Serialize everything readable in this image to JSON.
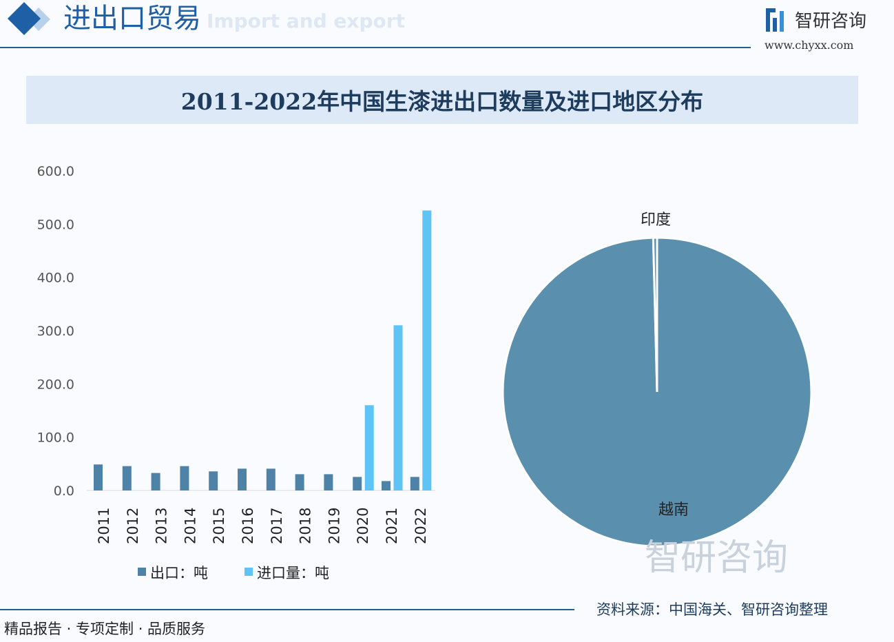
{
  "header": {
    "title": "进出口贸易",
    "subtitle": "Import and export",
    "brand": "智研咨询",
    "url": "www.chyxx.com"
  },
  "chart_title": "2011-2022年中国生漆进出口数量及进口地区分布",
  "footer": {
    "left": "精品报告 · 专项定制 · 品质服务",
    "source": "资料来源：中国海关、智研咨询整理",
    "watermark": "智研咨询"
  },
  "colors": {
    "export": "#4e82a6",
    "import": "#5ec4f5",
    "pie": "#5a8fad",
    "accent": "#1f5fa6"
  },
  "chart_data": [
    {
      "type": "bar",
      "title": "",
      "categories": [
        "2011",
        "2012",
        "2013",
        "2014",
        "2015",
        "2016",
        "2017",
        "2018",
        "2019",
        "2020",
        "2021",
        "2022"
      ],
      "series": [
        {
          "name": "出口：吨",
          "values": [
            48.8,
            45.7,
            32.8,
            45.7,
            35.8,
            40.9,
            40.9,
            30.5,
            30.5,
            25.4,
            17.6,
            25.4
          ]
        },
        {
          "name": "进口量：吨",
          "values": [
            null,
            null,
            null,
            null,
            null,
            null,
            null,
            null,
            null,
            160,
            310,
            525.6
          ]
        }
      ],
      "yticks": [
        "0.0",
        "100.0",
        "200.0",
        "300.0",
        "400.0",
        "500.0",
        "600.0"
      ],
      "ylim": [
        0,
        600
      ],
      "legend": "bottom",
      "grid": false
    },
    {
      "type": "pie",
      "slices": [
        {
          "label": "越南",
          "value": 99.6
        },
        {
          "label": "印度",
          "value": 0.4
        }
      ]
    }
  ]
}
